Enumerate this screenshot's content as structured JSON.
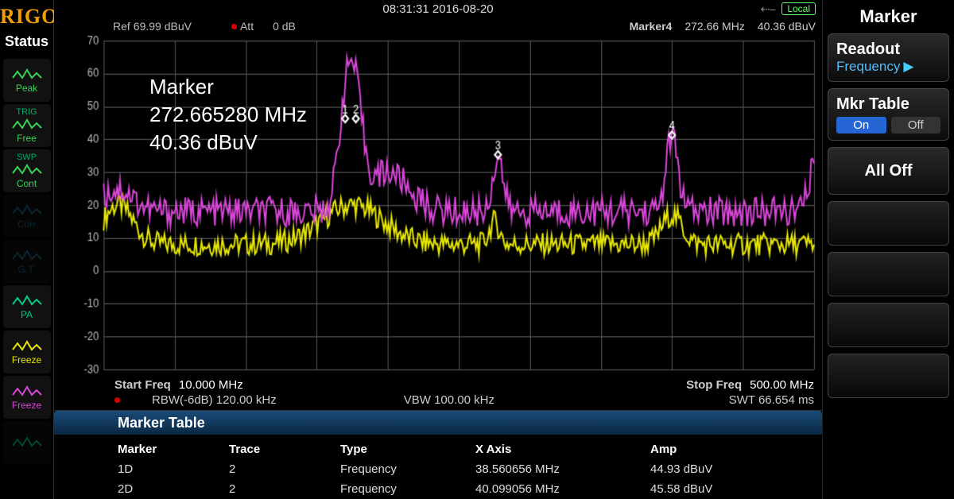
{
  "brand": "RIGOL",
  "topbar": {
    "clock": "08:31:31 2016-08-20",
    "local_label": "Local"
  },
  "info_row": {
    "ref_label": "Ref",
    "ref_value": "69.99 dBuV",
    "att_label": "Att",
    "att_value": "0 dB",
    "marker_label": "Marker4",
    "marker_freq": "272.66 MHz",
    "marker_amp": "40.36 dBuV"
  },
  "status": {
    "title": "Status",
    "items": [
      {
        "name": "peak",
        "label": "Peak",
        "color": "#39d353",
        "dim": false
      },
      {
        "name": "trig",
        "label": "Free",
        "color": "#39d353",
        "dim": false,
        "pre": "TRIG",
        "preColor": "#0a6"
      },
      {
        "name": "swp",
        "label": "Cont",
        "color": "#39d353",
        "dim": false,
        "pre": "SWP",
        "preColor": "#0a6"
      },
      {
        "name": "corr",
        "label": "Corr",
        "color": "#268",
        "dim": true
      },
      {
        "name": "gt",
        "label": "G.T.",
        "color": "#268",
        "dim": true
      },
      {
        "name": "pa",
        "label": "PA",
        "color": "#0c8",
        "dim": false
      },
      {
        "name": "freeze1",
        "label": "Freeze",
        "color": "#e6e600",
        "dim": false
      },
      {
        "name": "freeze2",
        "label": "Freeze",
        "color": "#d846d8",
        "dim": false
      },
      {
        "name": "blank",
        "label": "",
        "color": "#0c8",
        "dim": true
      }
    ]
  },
  "marker_overlay": {
    "title": "Marker",
    "freq": "272.665280 MHz",
    "amp": "40.36 dBuV"
  },
  "chart": {
    "type": "line",
    "background_color": "#000000",
    "grid_color": "#555555",
    "axis_text_color": "#bbbbbb",
    "ylabel_fontsize": 13,
    "ylim": [
      -30,
      70
    ],
    "ytick_step": 10,
    "x_start_label": "Start Freq",
    "x_start_value": "10.000 MHz",
    "x_stop_label": "Stop Freq",
    "x_stop_value": "500.00 MHz",
    "rbw_label": "RBW(-6dB)",
    "rbw_value": "120.00 kHz",
    "vbw_label": "VBW",
    "vbw_value": "100.00 kHz",
    "swt_label": "SWT",
    "swt_value": "66.654 ms",
    "peak_markers": [
      {
        "label": "1",
        "x": 0.34,
        "y": 46
      },
      {
        "label": "2",
        "x": 0.355,
        "y": 46
      },
      {
        "label": "3",
        "x": 0.555,
        "y": 35
      },
      {
        "label": "4",
        "x": 0.8,
        "y": 41
      }
    ],
    "traces": [
      {
        "name": "trace-yellow",
        "color": "#e6e600",
        "width": 2,
        "base": 8,
        "noise": 3.5,
        "peaks": [
          {
            "x": 0.02,
            "y": 20,
            "w": 0.03
          },
          {
            "x": 0.35,
            "y": 20,
            "w": 0.06
          },
          {
            "x": 0.55,
            "y": 15,
            "w": 0.01
          },
          {
            "x": 0.8,
            "y": 17,
            "w": 0.02
          }
        ]
      },
      {
        "name": "trace-magenta",
        "color": "#d846d8",
        "width": 2,
        "base": 18,
        "noise": 4.5,
        "peaks": [
          {
            "x": 0.02,
            "y": 25,
            "w": 0.03
          },
          {
            "x": 0.34,
            "y": 46,
            "w": 0.015
          },
          {
            "x": 0.355,
            "y": 46,
            "w": 0.015
          },
          {
            "x": 0.4,
            "y": 30,
            "w": 0.04
          },
          {
            "x": 0.555,
            "y": 35,
            "w": 0.01
          },
          {
            "x": 0.8,
            "y": 41,
            "w": 0.012
          },
          {
            "x": 0.998,
            "y": 30,
            "w": 0.01
          }
        ]
      }
    ]
  },
  "marker_table": {
    "title": "Marker Table",
    "columns": [
      "Marker",
      "Trace",
      "Type",
      "X Axis",
      "Amp"
    ],
    "rows": [
      [
        "1D",
        "2",
        "Frequency",
        "38.560656 MHz",
        "44.93 dBuV"
      ],
      [
        "2D",
        "2",
        "Frequency",
        "40.099056 MHz",
        "45.58 dBuV"
      ]
    ]
  },
  "softkeys": {
    "title": "Marker",
    "readout_label": "Readout",
    "readout_value": "Frequency",
    "mkr_table_label": "Mkr Table",
    "mkr_table_on": "On",
    "mkr_table_off": "Off",
    "all_off": "All Off"
  }
}
